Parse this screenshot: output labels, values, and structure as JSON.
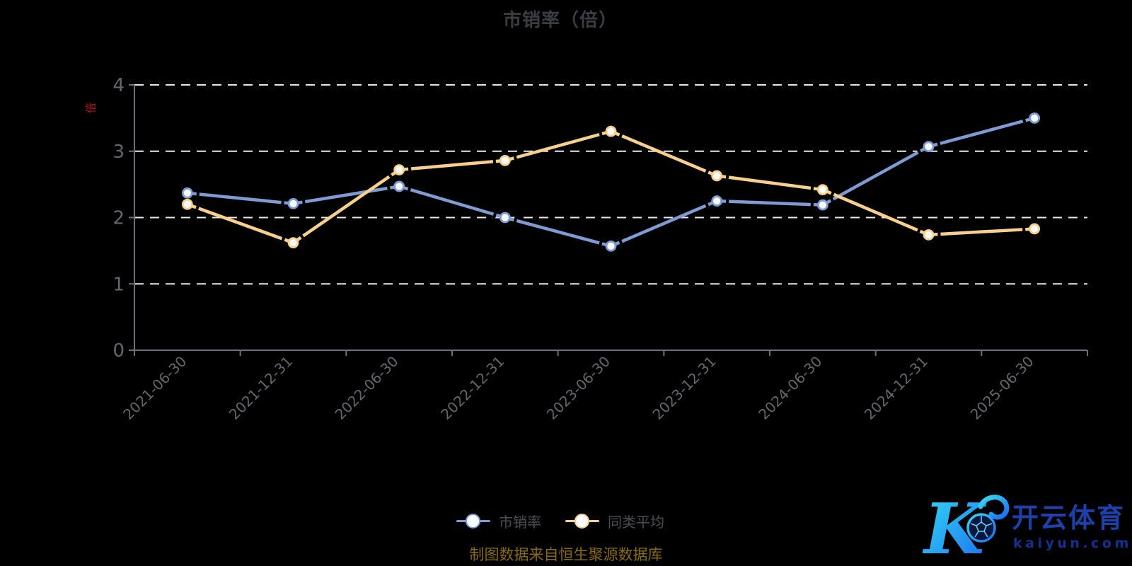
{
  "title": {
    "text": "市销率（倍）"
  },
  "y_axis": {
    "unit_name": "倍",
    "tick_labels": [
      "0",
      "1",
      "2",
      "3",
      "4"
    ],
    "min": 0,
    "max": 4
  },
  "legend": {
    "items": [
      {
        "label": "市销率",
        "color": "#7E9BD3"
      },
      {
        "label": "同类平均",
        "color": "#F8D08C"
      }
    ]
  },
  "caption": {
    "text": "制图数据来自恒生聚源数据库"
  },
  "watermark": {
    "brand_cn": "开云体育",
    "domain": "kaiyun.com",
    "logo": "kaiyun-k-soccer-logo"
  },
  "colors": {
    "background": "#000000",
    "title_text": "#3A3D42",
    "axis_line": "#6E7079",
    "axis_label": "#63676D",
    "gridline": "#E8E8E8",
    "series_blue": "#7E9BD3",
    "series_yellow": "#F8D08C",
    "marker_fill": "#FBFDFF",
    "y_unit_red": "#C01010",
    "caption_gold": "#8A6A14",
    "watermark_cn_blue": "#1D41A8",
    "watermark_domain_blue": "#14318F",
    "watermark_gradient": [
      "#35DDF2",
      "#1B6BF2"
    ]
  },
  "chart_data": {
    "type": "line",
    "title": "市销率（倍）",
    "categories": [
      "2021-06-30",
      "2021-12-31",
      "2022-06-30",
      "2022-12-31",
      "2023-06-30",
      "2023-12-31",
      "2024-06-30",
      "2024-12-31",
      "2025-06-30"
    ],
    "series": [
      {
        "name": "市销率",
        "color": "#7E9BD3",
        "values": [
          2.37,
          2.21,
          2.47,
          2.0,
          1.57,
          2.25,
          2.19,
          3.07,
          3.5
        ]
      },
      {
        "name": "同类平均",
        "color": "#F8D08C",
        "values": [
          2.2,
          1.62,
          2.72,
          2.86,
          3.3,
          2.63,
          2.42,
          1.74,
          1.83
        ]
      }
    ],
    "xlabel": "",
    "ylabel": "倍",
    "ylim": [
      0,
      4
    ],
    "y_ticks": [
      0,
      1,
      2,
      3,
      4
    ],
    "grid": "horizontal-dashed-white",
    "x_label_rotation_deg": -45,
    "legend_position": "bottom",
    "marker": "circle-white-fill-colored-ring"
  }
}
